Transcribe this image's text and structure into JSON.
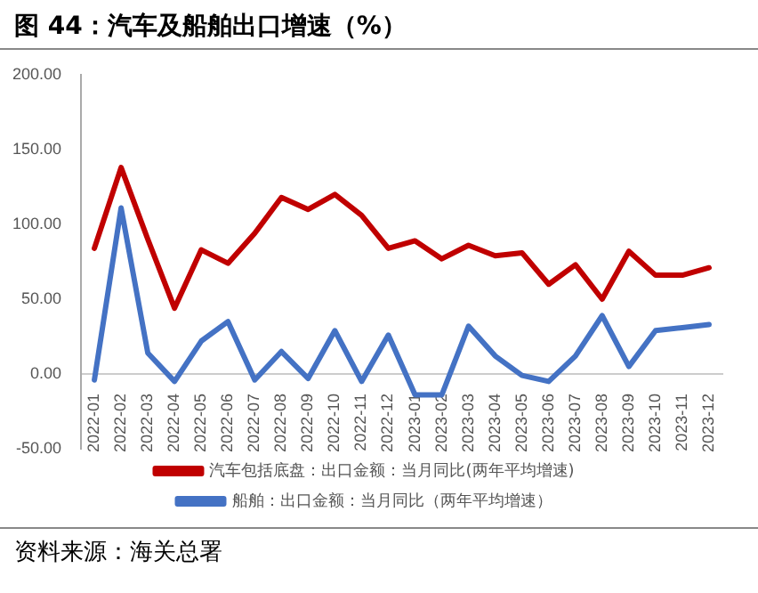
{
  "chart_data": {
    "type": "line",
    "title": "图 44：汽车及船舶出口增速（%）",
    "categories": [
      "2022-01",
      "2022-02",
      "2022-03",
      "2022-04",
      "2022-05",
      "2022-06",
      "2022-07",
      "2022-08",
      "2022-09",
      "2022-10",
      "2022-11",
      "2022-12",
      "2023-01",
      "2023-02",
      "2023-03",
      "2023-04",
      "2023-05",
      "2023-06",
      "2023-07",
      "2023-08",
      "2023-09",
      "2023-10",
      "2023-11",
      "2023-12"
    ],
    "series": [
      {
        "name": "汽车包括底盘：出口金额：当月同比(两年平均增速)",
        "color": "#c00000",
        "values": [
          84,
          138,
          90,
          44,
          83,
          74,
          94,
          118,
          110,
          120,
          106,
          84,
          89,
          77,
          86,
          79,
          81,
          60,
          73,
          50,
          82,
          66,
          66,
          71
        ]
      },
      {
        "name": "船舶：出口金额：当月同比（两年平均增速）",
        "color": "#4472c4",
        "values": [
          -4,
          111,
          14,
          -5,
          22,
          35,
          -4,
          15,
          -3,
          29,
          -5,
          26,
          -14,
          -14,
          32,
          12,
          -1,
          -5,
          12,
          39,
          5,
          29,
          31,
          33
        ]
      }
    ],
    "ylim": [
      -50,
      200
    ],
    "yticks": [
      {
        "value": -50,
        "label": "-50.00"
      },
      {
        "value": 0,
        "label": "0.00"
      },
      {
        "value": 50,
        "label": "50.00"
      },
      {
        "value": 100,
        "label": "100.00"
      },
      {
        "value": 150,
        "label": "150.00"
      },
      {
        "value": 200,
        "label": "200.00"
      }
    ],
    "grid": false,
    "legend": "bottom",
    "marker": "none",
    "line_style": "solid",
    "annotations": [
      "资料来源：海关总署"
    ]
  }
}
